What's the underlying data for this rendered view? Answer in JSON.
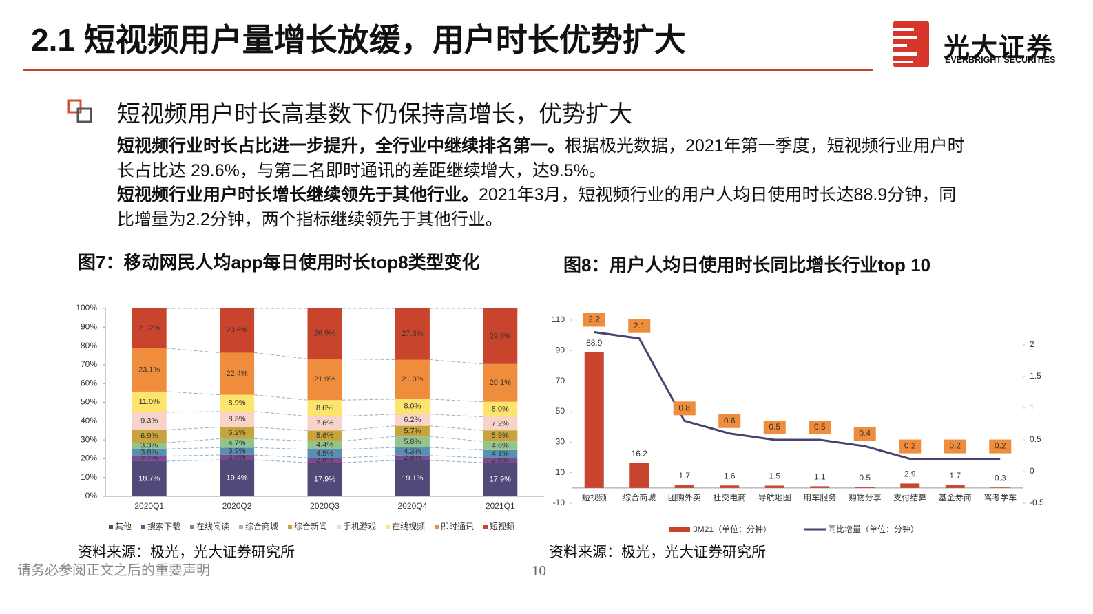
{
  "header": {
    "title": "2.1 短视频用户量增长放缓，用户时长优势扩大",
    "logo_name": "光大证券",
    "logo_en": "EVERBRIGHT SECURITIES"
  },
  "section": {
    "heading": "短视频用户时长高基数下仍保持高增长，优势扩大",
    "paragraphs": [
      {
        "bold": "短视频行业时长占比进一步提升，全行业中继续排名第一。",
        "text": "根据极光数据，2021年第一季度，短视频行业用户时长占比达 29.6%，与第二名即时通讯的差距继续增大，达9.5%。"
      },
      {
        "bold": "短视频行业用户时长增长继续领先于其他行业。",
        "text": "2021年3月，短视频行业的用户人均日使用时长达88.9分钟，同比增量为2.2分钟，两个指标继续领先于其他行业。"
      }
    ]
  },
  "chart_data": [
    {
      "type": "stacked_bar",
      "title": "图7：移动网民人均app每日使用时长top8类型变化",
      "source": "资料来源：极光，光大证券研究所",
      "categories": [
        "2020Q1",
        "2020Q2",
        "2020Q3",
        "2020Q4",
        "2021Q1"
      ],
      "ylim": [
        0,
        100
      ],
      "yticks": [
        {
          "value": 0,
          "label": "0%"
        },
        {
          "value": 10,
          "label": "10%"
        },
        {
          "value": 20,
          "label": "20%"
        },
        {
          "value": 30,
          "label": "30%"
        },
        {
          "value": 40,
          "label": "40%"
        },
        {
          "value": 50,
          "label": "50%"
        },
        {
          "value": 60,
          "label": "60%"
        },
        {
          "value": 70,
          "label": "70%"
        },
        {
          "value": 80,
          "label": "80%"
        },
        {
          "value": 90,
          "label": "90%"
        },
        {
          "value": 100,
          "label": "100%"
        }
      ],
      "series": [
        {
          "name": "其他",
          "color": "#4f4a78",
          "values": [
            18.7,
            19.4,
            17.9,
            19.1,
            17.9
          ],
          "value_labels": [
            "18.7%",
            "19.4%",
            "17.9%",
            "19.1%",
            "17.9%"
          ]
        },
        {
          "name": "搜索下载",
          "color": "#7d4a8e",
          "values": [
            2.7,
            2.6,
            2.6,
            2.6,
            2.6
          ],
          "value_labels": [
            "2.7%",
            "2.6%",
            "2.6%",
            "2.6%",
            "2.6%"
          ]
        },
        {
          "name": "在线阅读",
          "color": "#5a8fb4",
          "values": [
            3.8,
            3.9,
            4.5,
            4.3,
            4.1
          ],
          "value_labels": [
            "3.8%",
            "3.9%",
            "4.5%",
            "4.3%",
            "4.1%"
          ]
        },
        {
          "name": "综合商城",
          "color": "#93c48e",
          "values": [
            3.3,
            4.7,
            4.4,
            5.8,
            4.6
          ],
          "value_labels": [
            "3.3%",
            "4.7%",
            "4.4%",
            "5.8%",
            "4.6%"
          ]
        },
        {
          "name": "综合新闻",
          "color": "#c9a43c",
          "values": [
            6.9,
            6.2,
            5.6,
            5.7,
            5.9
          ],
          "value_labels": [
            "6.9%",
            "6.2%",
            "5.6%",
            "5.7%",
            "5.9%"
          ]
        },
        {
          "name": "手机游戏",
          "color": "#f8d3ca",
          "values": [
            9.3,
            8.3,
            7.6,
            6.2,
            7.2
          ],
          "value_labels": [
            "9.3%",
            "8.3%",
            "7.6%",
            "6.2%",
            "7.2%"
          ]
        },
        {
          "name": "在线视频",
          "color": "#fde46c",
          "values": [
            11.0,
            8.9,
            8.6,
            8.0,
            8.0
          ],
          "value_labels": [
            "11.0%",
            "8.9%",
            "8.6%",
            "8.0%",
            "8.0%"
          ]
        },
        {
          "name": "即时通讯",
          "color": "#f08d3c",
          "values": [
            23.1,
            22.4,
            21.9,
            21.0,
            20.1
          ],
          "value_labels": [
            "23.1%",
            "22.4%",
            "21.9%",
            "21.0%",
            "20.1%"
          ]
        },
        {
          "name": "短视频",
          "color": "#c8442c",
          "values": [
            21.2,
            23.6,
            26.9,
            27.3,
            29.6
          ],
          "value_labels": [
            "21.2%",
            "23.6%",
            "26.9%",
            "27.3%",
            "29.6%"
          ]
        }
      ]
    },
    {
      "type": "bar_line",
      "title": "图8：用户人均日使用时长同比增长行业top 10",
      "source": "资料来源：极光，光大证券研究所",
      "categories": [
        "短视频",
        "综合商城",
        "团购外卖",
        "社交电商",
        "导航地图",
        "用车服务",
        "购物分享",
        "支付结算",
        "基金券商",
        "驾考学车"
      ],
      "ylim": [
        -10,
        110
      ],
      "yticks": [
        -10,
        10,
        30,
        50,
        70,
        90,
        110
      ],
      "y2lim": [
        -0.5,
        2.39
      ],
      "y2ticks": [
        -0.5,
        0,
        0.5,
        1,
        1.5,
        2
      ],
      "series": [
        {
          "name": "3M21（单位：分钟）",
          "type": "bar",
          "color": "#c8442c",
          "values": [
            88.9,
            16.2,
            1.7,
            1.6,
            1.5,
            1.1,
            0.5,
            2.9,
            1.7,
            0.3
          ]
        },
        {
          "name": "同比增量（单位：分钟）",
          "type": "line",
          "axis": "y2",
          "color": "#4a4270",
          "label_color": "#f08d3c",
          "values": [
            2.2,
            2.1,
            0.8,
            0.6,
            0.5,
            0.5,
            0.4,
            0.2,
            0.2,
            0.2
          ]
        }
      ]
    }
  ],
  "footer": {
    "disclaimer": "请务必参阅正文之后的重要声明",
    "page": "10"
  }
}
